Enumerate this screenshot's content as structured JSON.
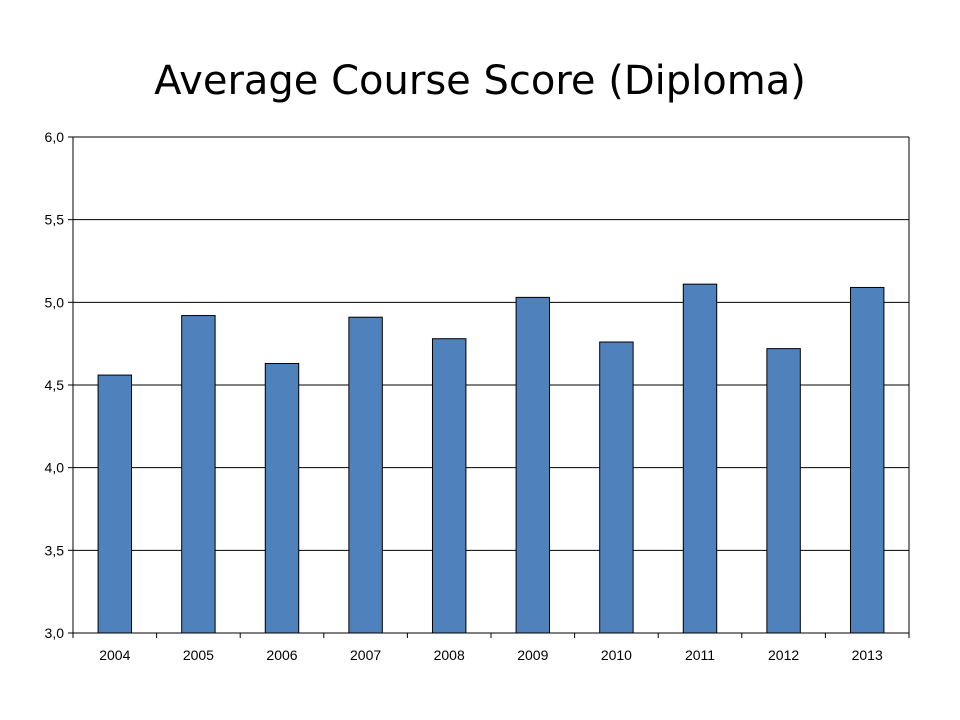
{
  "title": "Average Course Score (Diploma)",
  "chart_data": {
    "type": "bar",
    "title": "Average Course Score (Diploma)",
    "xlabel": "",
    "ylabel": "",
    "categories": [
      "2004",
      "2005",
      "2006",
      "2007",
      "2008",
      "2009",
      "2010",
      "2011",
      "2012",
      "2013"
    ],
    "values": [
      4.56,
      4.92,
      4.63,
      4.91,
      4.78,
      5.03,
      4.76,
      5.11,
      4.72,
      5.09
    ],
    "ylim": [
      3.0,
      6.0
    ],
    "yticks": [
      3.0,
      3.5,
      4.0,
      4.5,
      5.0,
      5.5,
      6.0
    ],
    "ytick_labels": [
      "3,0",
      "3,5",
      "4,0",
      "4,5",
      "5,0",
      "5,5",
      "6,0"
    ],
    "grid": true,
    "legend": "none",
    "bar_color": "#4f81bd"
  }
}
